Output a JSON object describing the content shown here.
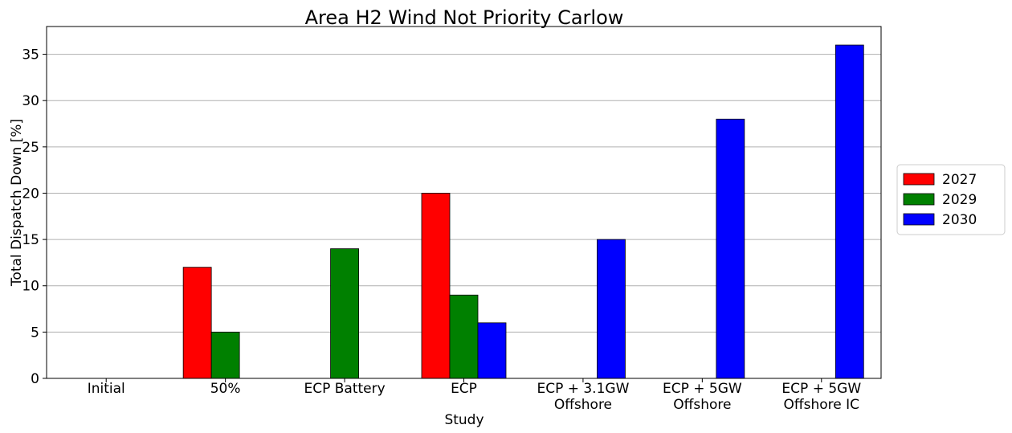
{
  "chart_data": {
    "type": "bar",
    "title": "Area H2 Wind Not Priority Carlow",
    "xlabel": "Study",
    "ylabel": "Total Dispatch Down [%]",
    "ylim": [
      0,
      38
    ],
    "yticks": [
      0,
      5,
      10,
      15,
      20,
      25,
      30,
      35
    ],
    "grid": "horizontal",
    "legend_position": "right",
    "categories": [
      [
        "Initial"
      ],
      [
        "50%"
      ],
      [
        "ECP Battery"
      ],
      [
        "ECP"
      ],
      [
        "ECP + 3.1GW",
        "Offshore"
      ],
      [
        "ECP + 5GW",
        "Offshore"
      ],
      [
        "ECP + 5GW",
        "Offshore IC"
      ]
    ],
    "series": [
      {
        "name": "2027",
        "color": "#ff0000",
        "values": [
          0,
          12,
          0,
          20,
          0,
          0,
          0
        ]
      },
      {
        "name": "2029",
        "color": "#008000",
        "values": [
          0,
          5,
          14,
          9,
          0,
          0,
          0
        ]
      },
      {
        "name": "2030",
        "color": "#0000ff",
        "values": [
          0,
          0,
          0,
          6,
          15,
          28,
          36
        ]
      }
    ]
  }
}
